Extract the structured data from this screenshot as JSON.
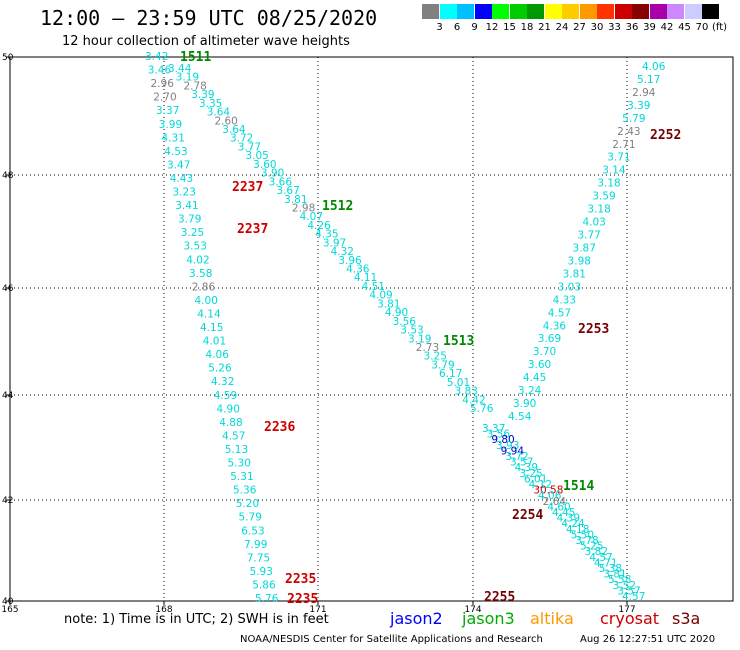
{
  "header": {
    "title": "12:00 — 23:59 UTC 08/25/2020",
    "subtitle": "12 hour collection of altimeter wave heights"
  },
  "legend": {
    "colors": [
      "#808080",
      "#00ffff",
      "#00c0ff",
      "#0000ff",
      "#00ff00",
      "#00cc00",
      "#009900",
      "#ffff00",
      "#ffcc00",
      "#ff9900",
      "#ff3300",
      "#cc0000",
      "#880000",
      "#aa00aa",
      "#cc88ff",
      "#ccccff",
      "#000000"
    ],
    "labels": [
      "3",
      "6",
      "9",
      "12",
      "15",
      "18",
      "21",
      "24",
      "27",
      "30",
      "33",
      "36",
      "39",
      "42",
      "45",
      "70",
      "(ft)"
    ]
  },
  "axes": {
    "lon_labels": [
      "165",
      "168",
      "171",
      "174",
      "177"
    ],
    "lat_labels": [
      "50",
      "48",
      "46",
      "44",
      "42",
      "40"
    ]
  },
  "tracks": [
    {
      "label": "1511",
      "color": "#008800"
    },
    {
      "label": "1512",
      "color": "#008800"
    },
    {
      "label": "1513",
      "color": "#008800"
    },
    {
      "label": "1514",
      "color": "#008800"
    },
    {
      "label": "2237",
      "color": "#cc0000"
    },
    {
      "label": "2237",
      "color": "#cc0000"
    },
    {
      "label": "2236",
      "color": "#cc0000"
    },
    {
      "label": "2235",
      "color": "#cc0000"
    },
    {
      "label": "2235",
      "color": "#cc0000"
    },
    {
      "label": "2252",
      "color": "#770000"
    },
    {
      "label": "2253",
      "color": "#770000"
    },
    {
      "label": "2254",
      "color": "#770000"
    },
    {
      "label": "2255",
      "color": "#770000"
    }
  ],
  "swh_colors": {
    "low": "#808080",
    "mid": "#00d8d8",
    "high": "#0000cc"
  },
  "readings": {
    "jason3": [
      "3.42",
      "3.44",
      "3.46",
      "3.19",
      "2.96",
      "2.78",
      "2.70",
      "3.39",
      "3.37",
      "3.35",
      "3.99",
      "3.64",
      "4.31",
      "2.60",
      "4.53",
      "3.64",
      "3.47",
      "3.72",
      "4.43",
      "3.77",
      "3.23",
      "3.05",
      "3.41",
      "3.60",
      "3.79",
      "3.90",
      "3.25",
      "3.66",
      "3.53",
      "3.67",
      "4.02",
      "3.81",
      "3.58",
      "2.98",
      "2.86",
      "4.07",
      "4.00",
      "4.26",
      "4.14",
      "4.35",
      "4.15",
      "3.97",
      "4.01",
      "4.32",
      "4.06",
      "3.96",
      "5.26",
      "4.36",
      "4.32",
      "4.11",
      "4.59",
      "4.51",
      "4.90",
      "4.09",
      "4.88",
      "3.81",
      "4.57",
      "4.90",
      "5.13",
      "3.56",
      "5.30",
      "3.53",
      "5.31",
      "3.19",
      "5.36",
      "2.73",
      "5.20",
      "3.25",
      "5.79",
      "3.79",
      "6.53",
      "6.17",
      "7.99",
      "5.01",
      "7.75",
      "3.83",
      "5.93",
      "4.42",
      "5.86",
      "5.76",
      "5.76"
    ],
    "jason3_b": [
      "3.37",
      "3.56",
      "9.80",
      "3.93",
      "9.94",
      "3.72",
      "3.57",
      "4.39",
      "3.25",
      "6.01",
      "4.12",
      "30.58",
      "4.06",
      "2.64",
      "4.60",
      "4.45",
      "4.39",
      "4.24",
      "4.18",
      "5.50",
      "3.78",
      "5.25",
      "3.82",
      "4.57",
      "4.71",
      "5.38",
      "3.81",
      "5.58",
      "3.52",
      "3.57",
      "4.57"
    ],
    "s3a": [
      "4.06",
      "5.17",
      "2.94",
      "3.39",
      "5.79",
      "2.43",
      "2.71",
      "3.71",
      "3.14",
      "3.18",
      "3.59",
      "3.18",
      "4.03",
      "3.77",
      "3.87",
      "3.98",
      "3.81",
      "3.03",
      "4.33",
      "4.57",
      "4.36",
      "3.69",
      "3.70",
      "3.60",
      "4.45",
      "3.24",
      "3.90",
      "4.54"
    ]
  },
  "footer": {
    "note": "note: 1) Time is in UTC; 2) SWH is in feet",
    "satellites": [
      {
        "name": "jason2",
        "color": "#0000ff"
      },
      {
        "name": "jason3",
        "color": "#00aa00"
      },
      {
        "name": "altika",
        "color": "#ff9900"
      },
      {
        "name": "cryosat",
        "color": "#cc0000"
      },
      {
        "name": "s3a",
        "color": "#770000"
      }
    ],
    "credit": "NOAA/NESDIS Center for Satellite Applications and Research",
    "timestamp": "Aug 26 12:27:51 UTC 2020"
  }
}
